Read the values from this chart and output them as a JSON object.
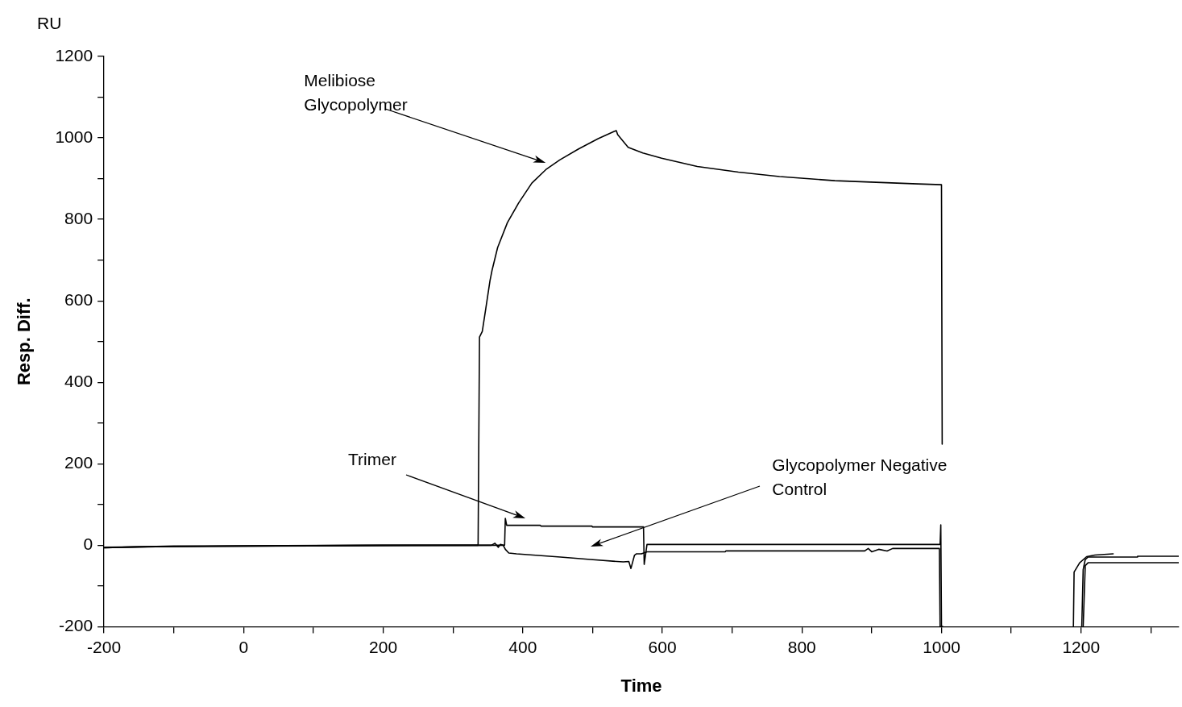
{
  "chart_data": {
    "type": "line",
    "xlabel": "Time",
    "ylabel": "Resp. Diff.",
    "xlim": [
      -200,
      1340
    ],
    "ylim": [
      -200,
      1200
    ],
    "xticks": [
      -200,
      {
        "value": -100,
        "label": null
      },
      0,
      {
        "value": 100,
        "label": null
      },
      200,
      {
        "value": 300,
        "label": null
      },
      400,
      {
        "value": 500,
        "label": null
      },
      600,
      {
        "value": 700,
        "label": null
      },
      800,
      {
        "value": 900,
        "label": null
      },
      1000,
      {
        "value": 1100,
        "label": null
      },
      1200,
      {
        "value": 1300,
        "label": null
      }
    ],
    "yticks": [
      -200,
      {
        "value": -100,
        "label": null
      },
      0,
      {
        "value": 100,
        "label": null
      },
      200,
      {
        "value": 300,
        "label": null
      },
      400,
      {
        "value": 500,
        "label": null
      },
      600,
      {
        "value": 700,
        "label": null
      },
      800,
      {
        "value": 900,
        "label": null
      },
      1000,
      {
        "value": 1100,
        "label": null
      },
      1200
    ],
    "grid": false,
    "legend": false,
    "marker": "none",
    "line_style": "solid",
    "annotations": [
      "RU",
      "Melibiose Glycopolymer",
      "Trimer",
      "Glycopolymer Negative Control"
    ],
    "series": [
      {
        "color": "#000000",
        "x": [
          -200,
          -150,
          -100,
          0,
          200,
          336,
          338,
          342,
          347,
          353,
          356,
          364,
          378,
          394,
          413,
          433,
          453,
          480,
          508,
          531,
          534,
          536,
          551,
          572,
          599,
          650,
          709,
          768,
          847,
          906,
          966,
          1000,
          1001,
          1002,
          1189,
          1190,
          1198,
          1208,
          1220,
          1246
        ],
        "values": [
          -6,
          -4,
          -3,
          -2,
          0,
          0,
          511,
          525,
          581,
          649,
          675,
          731,
          792,
          840,
          889,
          922,
          946,
          973,
          998,
          1016,
          1018,
          1008,
          977,
          963,
          950,
          930,
          916,
          905,
          895,
          891,
          887,
          885,
          248,
          null,
          -200,
          -66,
          -43,
          -28,
          -24,
          -21
        ]
      },
      {
        "color": "#000000",
        "x": [
          -200,
          -100,
          175,
          374,
          375,
          377,
          425,
          426,
          499,
          500,
          573,
          574,
          578,
          998,
          999,
          1000,
          1001,
          1002,
          1203,
          1206,
          1210,
          1340
        ],
        "values": [
          -6,
          -2,
          0,
          0,
          66,
          49,
          49,
          47,
          47,
          45,
          45,
          -47,
          2,
          2,
          50,
          -200,
          -200,
          null,
          -200,
          -50,
          -43,
          -43
        ]
      },
      {
        "color": "#000000",
        "x": [
          -200,
          -100,
          175,
          355,
          360,
          365,
          368,
          372,
          375,
          380,
          391,
          454,
          497,
          544,
          552,
          555,
          560,
          563,
          570,
          578,
          690,
          691,
          890,
          895,
          900,
          910,
          922,
          930,
          997,
          998,
          1002,
          1003,
          1201,
          1203,
          1206,
          1210,
          1280,
          1281,
          1340
        ],
        "values": [
          -5,
          -3,
          -1,
          0,
          5,
          -5,
          2,
          0,
          -10,
          -19,
          -21,
          -29,
          -35,
          -41,
          -40,
          -57,
          -25,
          -21,
          -21,
          -16,
          -16,
          -14,
          -14,
          -8,
          -16,
          -10,
          -14,
          -8,
          -8,
          -200,
          -200,
          null,
          -200,
          -60,
          -35,
          -29,
          -29,
          -27,
          -27
        ]
      }
    ]
  }
}
